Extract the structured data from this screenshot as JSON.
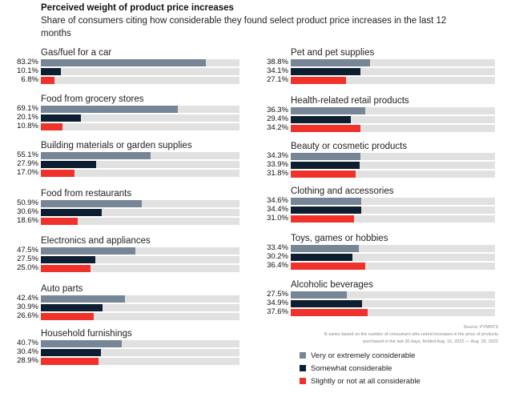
{
  "chart_data": {
    "type": "bar",
    "orientation": "horizontal",
    "title": "Perceived weight of product price increases",
    "subtitle": "Share of consumers citing how considerable they found select product price increases in the last 12 months",
    "xlim": [
      0,
      100
    ],
    "value_suffix": "%",
    "series": [
      {
        "name": "Very or extremely considerable",
        "color": "#768696"
      },
      {
        "name": "Somewhat considerable",
        "color": "#0c1e30"
      },
      {
        "name": "Slightly or not at all considerable",
        "color": "#f0322a"
      }
    ],
    "groups": [
      {
        "label": "Gas/fuel for a car",
        "values": [
          83.2,
          10.1,
          6.8
        ]
      },
      {
        "label": "Food from grocery stores",
        "values": [
          69.1,
          20.1,
          10.8
        ]
      },
      {
        "label": "Building materials or garden supplies",
        "values": [
          55.1,
          27.9,
          17.0
        ]
      },
      {
        "label": "Food from restaurants",
        "values": [
          50.9,
          30.6,
          18.6
        ]
      },
      {
        "label": "Electronics and appliances",
        "values": [
          47.5,
          27.5,
          25.0
        ]
      },
      {
        "label": "Auto parts",
        "values": [
          42.4,
          30.9,
          26.6
        ]
      },
      {
        "label": "Household furnishings",
        "values": [
          40.7,
          30.4,
          28.9
        ]
      },
      {
        "label": "Pet and pet supplies",
        "values": [
          38.8,
          34.1,
          27.1
        ]
      },
      {
        "label": "Health-related retail products",
        "values": [
          36.3,
          29.4,
          34.2
        ]
      },
      {
        "label": "Beauty or cosmetic products",
        "values": [
          34.3,
          33.9,
          31.8
        ]
      },
      {
        "label": "Clothing and accessories",
        "values": [
          34.6,
          34.4,
          31.0
        ]
      },
      {
        "label": "Toys, games or hobbies",
        "values": [
          33.4,
          30.2,
          36.4
        ]
      },
      {
        "label": "Alcoholic beverages",
        "values": [
          27.5,
          34.9,
          37.6
        ]
      }
    ],
    "value_labels": [
      [
        "83.2%",
        "10.1%",
        "6.8%"
      ],
      [
        "69.1%",
        "20.1%",
        "10.8%"
      ],
      [
        "55.1%",
        "27.9%",
        "17.0%"
      ],
      [
        "50.9%",
        "30.6%",
        "18.6%"
      ],
      [
        "47.5%",
        "27.5%",
        "25.0%"
      ],
      [
        "42.4%",
        "30.9%",
        "26.6%"
      ],
      [
        "40.7%",
        "30.4%",
        "28.9%"
      ],
      [
        "38.8%",
        "34.1%",
        "27.1%"
      ],
      [
        "36.3%",
        "29.4%",
        "34.2%"
      ],
      [
        "34.3%",
        "33.9%",
        "31.8%"
      ],
      [
        "34.6%",
        "34.4%",
        "31.0%"
      ],
      [
        "33.4%",
        "30.2%",
        "36.4%"
      ],
      [
        "27.5%",
        "34.9%",
        "37.6%"
      ]
    ],
    "legend_position": "bottom-right",
    "track_color": "#e1e1e1"
  },
  "source": {
    "line1": "Source: PYMNTS",
    "line2": "N varies based on the number of consumers who noted increases in the price of products",
    "line3": "purchased in the last 30 days, fielded Aug. 10, 2022 — Aug. 29, 2022"
  }
}
